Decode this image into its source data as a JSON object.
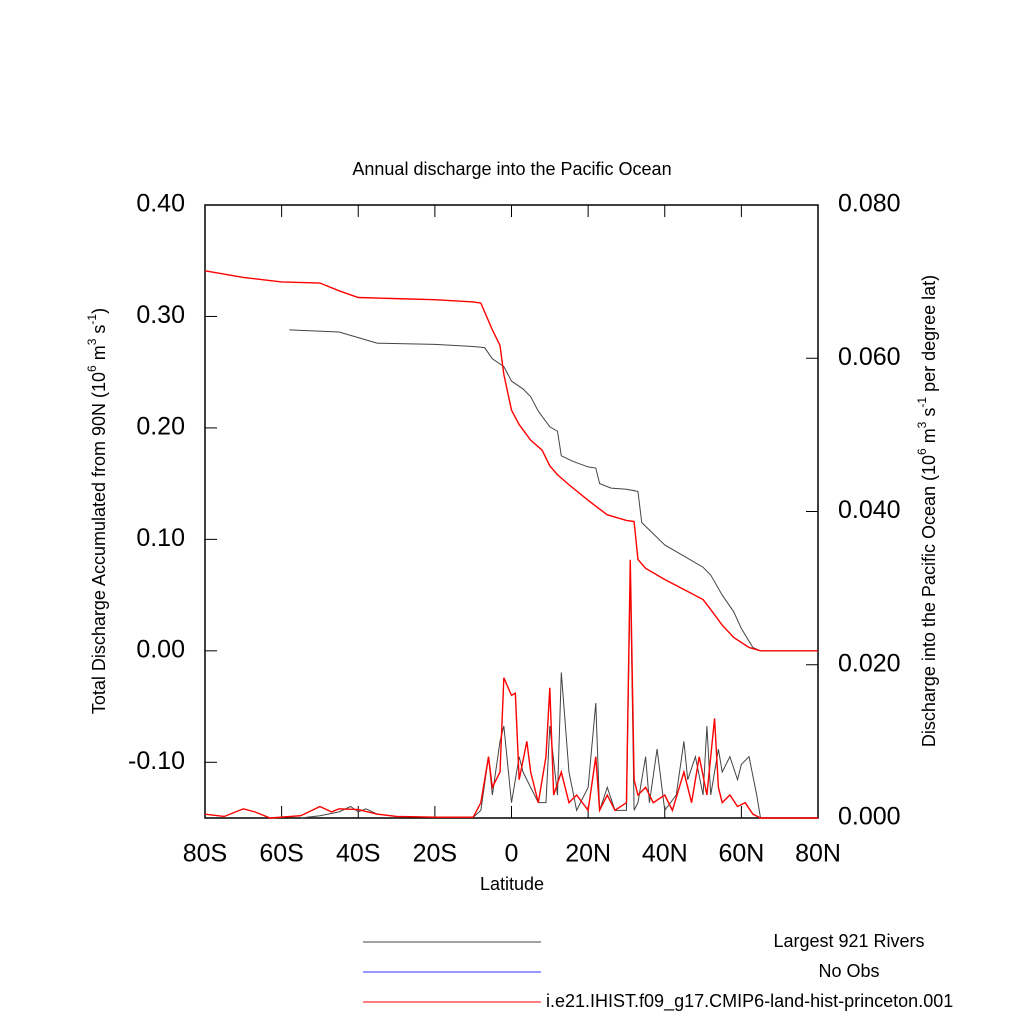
{
  "chart_data": {
    "type": "line",
    "title": "Annual discharge into the Pacific Ocean",
    "xlabel": "Latitude",
    "ylabel": [
      "Total Discharge Accumulated from 90N (10",
      "6",
      " m",
      "3",
      " s",
      "-1",
      ")"
    ],
    "y2label": [
      "Discharge into the Pacific Ocean (10",
      "6",
      " m",
      "3",
      " s",
      "-1",
      " per degree lat)"
    ],
    "xlim": [
      -80,
      80
    ],
    "xticks": [
      {
        "value": -80,
        "label": "80S"
      },
      {
        "value": -60,
        "label": "60S"
      },
      {
        "value": -40,
        "label": "40S"
      },
      {
        "value": -20,
        "label": "20S"
      },
      0,
      {
        "value": 20,
        "label": "20N"
      },
      {
        "value": 40,
        "label": "40N"
      },
      {
        "value": 60,
        "label": "60N"
      },
      {
        "value": 80,
        "label": "80N"
      }
    ],
    "ylim": [
      -0.15,
      0.4
    ],
    "yticks": [
      {
        "value": -0.1,
        "label": "-0.10"
      },
      {
        "value": 0,
        "label": "0.00"
      },
      {
        "value": 0.1,
        "label": "0.10"
      },
      {
        "value": 0.2,
        "label": "0.20"
      },
      {
        "value": 0.3,
        "label": "0.30"
      },
      {
        "value": 0.4,
        "label": "0.40"
      }
    ],
    "y2lim": [
      0,
      0.08
    ],
    "y2ticks": [
      {
        "value": 0,
        "label": "0.000"
      },
      {
        "value": 0.02,
        "label": "0.020"
      },
      {
        "value": 0.04,
        "label": "0.040"
      },
      {
        "value": 0.06,
        "label": "0.060"
      },
      {
        "value": 0.08,
        "label": "0.080"
      }
    ],
    "series": [
      {
        "name": "Largest 921 Rivers",
        "color": "#444444",
        "accumulated": {
          "x": [
            -58,
            -45,
            -40,
            -35,
            -20,
            -10,
            -7,
            -5,
            -2,
            0,
            3,
            5,
            7,
            10,
            12,
            13,
            16,
            20,
            22,
            23,
            26,
            30,
            33,
            34,
            37,
            40,
            45,
            50,
            52,
            55,
            58,
            60,
            63,
            65
          ],
          "values": [
            0.288,
            0.286,
            0.281,
            0.276,
            0.275,
            0.273,
            0.272,
            0.262,
            0.255,
            0.242,
            0.235,
            0.228,
            0.215,
            0.201,
            0.197,
            0.175,
            0.17,
            0.165,
            0.164,
            0.15,
            0.146,
            0.145,
            0.143,
            0.115,
            0.105,
            0.095,
            0.085,
            0.075,
            0.068,
            0.05,
            0.035,
            0.02,
            0.003,
            0
          ]
        },
        "discharge": {
          "x": [
            -55,
            -50,
            -45,
            -42,
            -40,
            -38,
            -35,
            -30,
            -20,
            -10,
            -8,
            -6,
            -5,
            -3,
            -2,
            0,
            2,
            3,
            5,
            7,
            9,
            10,
            12,
            13,
            15,
            17,
            20,
            22,
            23,
            25,
            27,
            30,
            31,
            32,
            33,
            35,
            36,
            38,
            40,
            43,
            45,
            46,
            48,
            50,
            51,
            52,
            54,
            55,
            57,
            59,
            60,
            62,
            64,
            65,
            80
          ],
          "values": [
            0,
            0.0003,
            0.0008,
            0.0015,
            0.0008,
            0.0012,
            0.0005,
            0.0002,
            0.0001,
            0.0001,
            0.001,
            0.008,
            0.003,
            0.01,
            0.012,
            0.002,
            0.008,
            0.006,
            0.004,
            0.002,
            0.002,
            0.012,
            0.003,
            0.019,
            0.006,
            0.001,
            0.004,
            0.015,
            0.001,
            0.004,
            0.001,
            0.001,
            0.032,
            0.001,
            0.002,
            0.008,
            0.002,
            0.009,
            0.001,
            0.003,
            0.01,
            0.005,
            0.008,
            0.003,
            0.012,
            0.003,
            0.009,
            0.006,
            0.008,
            0.005,
            0.007,
            0.008,
            0.003,
            0,
            0
          ]
        }
      },
      {
        "name": "No Obs",
        "color": "#3333ff"
      },
      {
        "name": "i.e21.IHIST.f09_g17.CMIP6-land-hist-princeton.001",
        "color": "#ff0000",
        "accumulated": {
          "x": [
            -80,
            -70,
            -60,
            -50,
            -45,
            -40,
            -30,
            -20,
            -10,
            -8,
            -5,
            -3,
            -2,
            0,
            2,
            5,
            8,
            10,
            12,
            15,
            20,
            25,
            30,
            32,
            33,
            35,
            40,
            45,
            50,
            52,
            55,
            58,
            62,
            65,
            80
          ],
          "values": [
            0.341,
            0.335,
            0.331,
            0.33,
            0.323,
            0.317,
            0.316,
            0.315,
            0.313,
            0.312,
            0.288,
            0.274,
            0.248,
            0.216,
            0.203,
            0.189,
            0.18,
            0.166,
            0.158,
            0.149,
            0.135,
            0.122,
            0.117,
            0.116,
            0.082,
            0.074,
            0.064,
            0.055,
            0.046,
            0.037,
            0.023,
            0.012,
            0.003,
            0,
            0
          ]
        },
        "discharge": {
          "x": [
            -80,
            -75,
            -70,
            -67,
            -63,
            -55,
            -50,
            -47,
            -45,
            -40,
            -35,
            -30,
            -20,
            -10,
            -8,
            -6,
            -5,
            -3,
            -2,
            0,
            1,
            2,
            4,
            5,
            7,
            9,
            10,
            11,
            13,
            15,
            17,
            20,
            22,
            23,
            25,
            27,
            30,
            31,
            32,
            33,
            35,
            37,
            40,
            42,
            45,
            47,
            49,
            51,
            53,
            54,
            55,
            57,
            59,
            61,
            63,
            65,
            70,
            80
          ],
          "values": [
            0.0005,
            0.0002,
            0.0012,
            0.0008,
            0,
            0.0003,
            0.0015,
            0.0008,
            0.0012,
            0.0011,
            0.0005,
            0.0002,
            0.0001,
            0.0001,
            0.002,
            0.008,
            0.004,
            0.006,
            0.0183,
            0.016,
            0.0163,
            0.005,
            0.01,
            0.006,
            0.002,
            0.008,
            0.017,
            0.003,
            0.006,
            0.002,
            0.003,
            0.001,
            0.008,
            0.001,
            0.003,
            0.001,
            0.002,
            0.0337,
            0.005,
            0.003,
            0.004,
            0.002,
            0.003,
            0.001,
            0.006,
            0.002,
            0.008,
            0.003,
            0.013,
            0.004,
            0.002,
            0.003,
            0.0015,
            0.002,
            0.0005,
            0,
            0,
            0
          ]
        }
      }
    ]
  }
}
